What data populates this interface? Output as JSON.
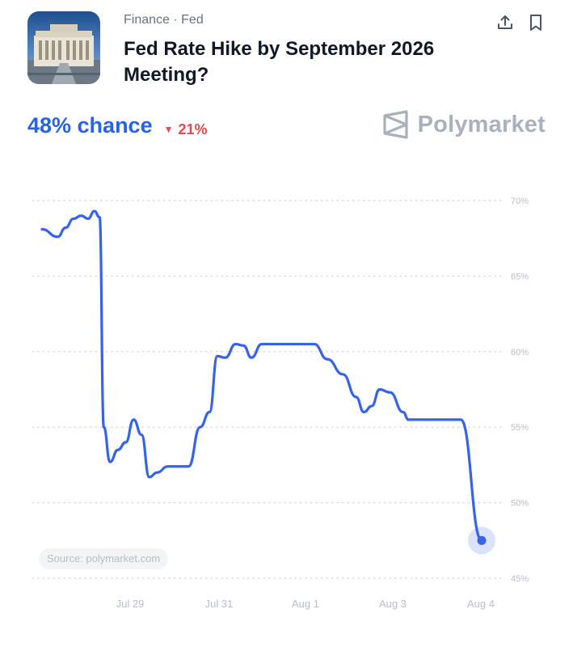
{
  "header": {
    "category": "Finance · Fed",
    "title": "Fed Rate Hike by September 2026 Meeting?",
    "thumbnail_icon": "federal-reserve-building-image",
    "share_icon": "share-upload-icon",
    "bookmark_icon": "bookmark-icon"
  },
  "summary": {
    "chance_text": "48% chance",
    "change_text": "21%",
    "change_direction": "down",
    "change_color": "#e5484d",
    "accent_color": "#2563eb"
  },
  "brand": {
    "name": "Polymarket",
    "logo_icon": "polymarket-logo-icon"
  },
  "source_label": "Source: polymarket.com",
  "chart_data": {
    "type": "line",
    "x_tick_labels": [
      "Jul 29",
      "Jul 31",
      "Aug 1",
      "Aug 3",
      "Aug 4"
    ],
    "y_tick_labels": [
      "70%",
      "65%",
      "60%",
      "55%",
      "50%",
      "45%"
    ],
    "y_ticks": [
      70,
      65,
      60,
      55,
      50,
      45
    ],
    "ylim": [
      45,
      70
    ],
    "grid": true,
    "line_color": "#3563e9",
    "series": [
      {
        "values": [
          [
            0.0,
            68.1
          ],
          [
            0.03,
            67.6
          ],
          [
            0.045,
            68.2
          ],
          [
            0.06,
            68.8
          ],
          [
            0.075,
            69.0
          ],
          [
            0.088,
            68.8
          ],
          [
            0.1,
            69.3
          ],
          [
            0.11,
            68.9
          ],
          [
            0.118,
            55.0
          ],
          [
            0.13,
            52.7
          ],
          [
            0.145,
            53.5
          ],
          [
            0.16,
            54.0
          ],
          [
            0.175,
            55.5
          ],
          [
            0.19,
            54.5
          ],
          [
            0.205,
            51.7
          ],
          [
            0.22,
            52.0
          ],
          [
            0.24,
            52.4
          ],
          [
            0.28,
            52.4
          ],
          [
            0.302,
            55.0
          ],
          [
            0.32,
            56.0
          ],
          [
            0.335,
            59.7
          ],
          [
            0.35,
            59.6
          ],
          [
            0.37,
            60.5
          ],
          [
            0.385,
            60.4
          ],
          [
            0.4,
            59.6
          ],
          [
            0.42,
            60.5
          ],
          [
            0.52,
            60.5
          ],
          [
            0.545,
            59.5
          ],
          [
            0.575,
            58.5
          ],
          [
            0.6,
            57.0
          ],
          [
            0.615,
            56.0
          ],
          [
            0.63,
            56.4
          ],
          [
            0.645,
            57.5
          ],
          [
            0.665,
            57.3
          ],
          [
            0.69,
            56.0
          ],
          [
            0.7,
            55.5
          ],
          [
            0.76,
            55.5
          ],
          [
            0.8,
            55.5
          ],
          [
            0.84,
            47.5
          ]
        ],
        "last_value": 47.5
      }
    ]
  }
}
